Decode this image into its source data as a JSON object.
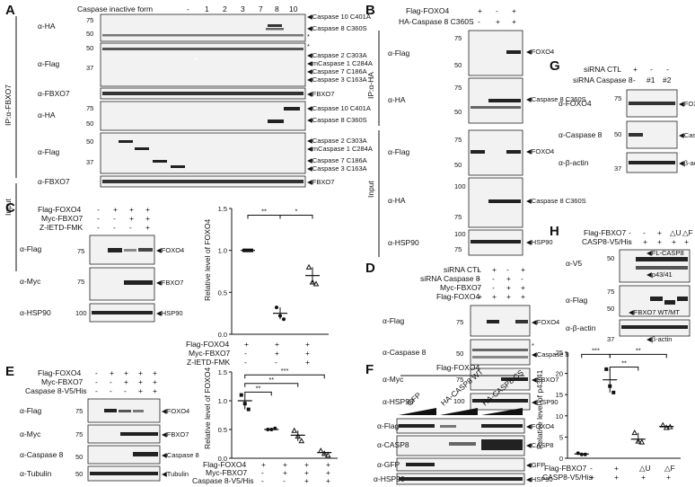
{
  "panels": {
    "A": {
      "letter": "A",
      "header": "Caspase inactive form",
      "lanes": [
        "-",
        "1",
        "2",
        "3",
        "7",
        "8",
        "10"
      ],
      "side_ip": "IP:α-FBXO7",
      "side_input": "Input",
      "rows": [
        "α-HA",
        "α-Flag",
        "α-FBXO7",
        "α-HA",
        "α-Flag",
        "α-FBXO7"
      ],
      "bands": [
        "Caspase 10 C401A",
        "Caspase 8 C360S",
        "Caspase 2 C303A",
        "mCaspase 1 C284A",
        "Caspase 7 C186A",
        "Caspase 3 C163A",
        "FBXO7",
        "Caspase 10 C401A",
        "Caspase 8 C360S",
        "Caspase 2 C303A",
        "mCaspase 1 C284A",
        "Caspase 7 C186A",
        "Caspase 3 C163A",
        "FBXO7"
      ],
      "mw": [
        "75",
        "50",
        "50",
        "37",
        "75",
        "50",
        "50",
        "37"
      ],
      "star": "*"
    },
    "B": {
      "letter": "B",
      "treat": [
        {
          "name": "Flag-FOXO4",
          "v": [
            "+",
            "-",
            "+"
          ]
        },
        {
          "name": "HA-Caspase 8 C360S",
          "v": [
            "-",
            "+",
            "+"
          ]
        }
      ],
      "side_ip": "IP:α-HA",
      "side_input": "Input",
      "rows": [
        "α-Flag",
        "α-HA",
        "α-Flag",
        "α-HA",
        "α-HSP90"
      ],
      "bands": [
        "FOXO4",
        "Caspase 8 C360S",
        "FOXO4",
        "Caspase 8 C360S",
        "HSP90"
      ],
      "mw": [
        "75",
        "50",
        "75",
        "50",
        "75",
        "50",
        "100",
        "75"
      ]
    },
    "C": {
      "letter": "C",
      "treat": [
        {
          "name": "Flag-FOXO4",
          "v": [
            "-",
            "+",
            "+",
            "+"
          ]
        },
        {
          "name": "Myc-FBXO7",
          "v": [
            "-",
            "-",
            "+",
            "+"
          ]
        },
        {
          "name": "Z-IETD-FMK",
          "v": [
            "-",
            "-",
            "-",
            "+"
          ]
        }
      ],
      "rows": [
        "α-Flag",
        "α-Myc",
        "α-HSP90"
      ],
      "bands": [
        "FOXO4",
        "FBXO7",
        "HSP90"
      ],
      "mw": [
        "75",
        "75",
        "100"
      ],
      "ylabel": "Relative level of FOXO4",
      "yticks": [
        "0.0",
        "0.5",
        "1.0",
        "1.5"
      ],
      "xrows": [
        {
          "name": "Flag-FOXO4",
          "v": [
            "+",
            "+",
            "+"
          ]
        },
        {
          "name": "Myc-FBXO7",
          "v": [
            "-",
            "+",
            "+"
          ]
        },
        {
          "name": "Z-IETD-FMK",
          "v": [
            "-",
            "-",
            "+"
          ]
        }
      ],
      "sig": [
        "**",
        "*"
      ]
    },
    "D": {
      "letter": "D",
      "treat": [
        {
          "name": "siRNA CTL",
          "v": [
            "-",
            "+",
            "-",
            "+"
          ]
        },
        {
          "name": "siRNA Caspase 8",
          "v": [
            "-",
            "-",
            "+",
            "-"
          ]
        },
        {
          "name": "Myc-FBXO7",
          "v": [
            "-",
            "-",
            "+",
            "+"
          ]
        },
        {
          "name": "Flag-FOXO4",
          "v": [
            "+",
            "+",
            "+",
            "+"
          ]
        }
      ],
      "rows": [
        "α-Flag",
        "α-Caspase 8",
        "α-Myc",
        "α-HSP90"
      ],
      "bands": [
        "FOXO4",
        "Caspase 8",
        "FBXO7",
        "HSP90"
      ],
      "mw": [
        "75",
        "50",
        "75",
        "100"
      ],
      "star": "*"
    },
    "E": {
      "letter": "E",
      "treat": [
        {
          "name": "Flag-FOXO4",
          "v": [
            "-",
            "+",
            "+",
            "+",
            "+"
          ]
        },
        {
          "name": "Myc-FBXO7",
          "v": [
            "-",
            "-",
            "+",
            "+",
            "+"
          ]
        },
        {
          "name": "Caspase 8-V5/His",
          "v": [
            "-",
            "-",
            "-",
            "+",
            "+"
          ]
        }
      ],
      "rows": [
        "α-Flag",
        "α-Myc",
        "α-Caspase 8",
        "α-Tubulin"
      ],
      "bands": [
        "FOXO4",
        "FBXO7",
        "Caspase 8",
        "Tubulin"
      ],
      "mw": [
        "75",
        "75",
        "50",
        "50"
      ],
      "ylabel": "Relative level of FOXO4",
      "yticks": [
        "0.0",
        "0.5",
        "1.0",
        "1.5"
      ],
      "xrows": [
        {
          "name": "Flag-FOXO4",
          "v": [
            "+",
            "+",
            "+",
            "+"
          ]
        },
        {
          "name": "Myc-FBXO7",
          "v": [
            "-",
            "+",
            "+",
            "+"
          ]
        },
        {
          "name": "Caspase 8-V5/His",
          "v": [
            "-",
            "-",
            "+",
            "+"
          ]
        }
      ],
      "sig": [
        "**",
        "**",
        "***"
      ]
    },
    "F": {
      "letter": "F",
      "header": "Flag-FOXO4",
      "groups": [
        "GFP",
        "HA-CASP8 WT",
        "HA-CASP8 CS"
      ],
      "rows": [
        "α-Flag",
        "α-CASP8",
        "α-GFP",
        "α-HSP90"
      ],
      "bands": [
        "FOXO4",
        "CASP8",
        "GFP",
        "HSP90"
      ],
      "mw": [
        "75",
        "75",
        "50",
        "37",
        "25",
        "100",
        "75"
      ]
    },
    "G": {
      "letter": "G",
      "treat": [
        {
          "name": "siRNA CTL",
          "v": [
            "+",
            "-",
            "-"
          ]
        },
        {
          "name": "siRNA Caspase 8",
          "v": [
            "-",
            "#1",
            "#2"
          ]
        }
      ],
      "rows": [
        "α-FOXO4",
        "α-Caspase 8",
        "α-β-actin"
      ],
      "bands": [
        "FOXO4",
        "Caspase 8",
        "β-actin"
      ],
      "mw": [
        "75",
        "50",
        "37"
      ]
    },
    "H": {
      "letter": "H",
      "treat": [
        {
          "name": "Flag-FBXO7",
          "v": [
            "-",
            "-",
            "+",
            "△U",
            "△F"
          ]
        },
        {
          "name": "CASP8-V5/His",
          "v": [
            "-",
            "+",
            "+",
            "+",
            "+"
          ]
        }
      ],
      "rows": [
        "α-V5",
        "α-Flag",
        "α-β-actin"
      ],
      "bands": [
        "FL-CASP8",
        "p43/41",
        "FBXO7 WT/MT",
        "β-actin"
      ],
      "mw": [
        "50",
        "75",
        "50",
        "37"
      ],
      "ylabel": "Relative level of p43/41",
      "yticks": [
        "0",
        "5",
        "10",
        "15",
        "20",
        "25"
      ],
      "xlabels": [
        "-",
        "+",
        "△U",
        "△F"
      ],
      "xrows": [
        {
          "name": "Flag-FBXO7",
          "v": [
            "-",
            "+",
            "△U",
            "△F"
          ]
        },
        {
          "name": "CASP8-V5/His",
          "v": [
            "+",
            "+",
            "+",
            "+"
          ]
        }
      ],
      "sig": [
        "***",
        "**",
        "**"
      ]
    }
  },
  "chart_data": [
    {
      "type": "scatter",
      "panel": "C",
      "ylabel": "Relative level of FOXO4",
      "ylim": [
        0,
        1.5
      ],
      "categories": [
        "1",
        "2",
        "3"
      ],
      "series": [
        {
          "values": [
            1.0,
            0.25,
            0.7
          ]
        }
      ],
      "points": [
        [
          1.0,
          1.0,
          1.0
        ],
        [
          0.32,
          0.22,
          0.18
        ],
        [
          0.8,
          0.62,
          0.6
        ]
      ]
    },
    {
      "type": "scatter",
      "panel": "E",
      "ylabel": "Relative level of FOXO4",
      "ylim": [
        0,
        1.5
      ],
      "categories": [
        "1",
        "2",
        "3",
        "4"
      ],
      "series": [
        {
          "values": [
            1.0,
            0.5,
            0.4,
            0.1
          ]
        }
      ],
      "points": [
        [
          1.1,
          0.95,
          0.85
        ],
        [
          0.5,
          0.5,
          0.52
        ],
        [
          0.48,
          0.38,
          0.3
        ],
        [
          0.13,
          0.08,
          0.05
        ]
      ]
    },
    {
      "type": "bar",
      "panel": "H",
      "ylabel": "Relative level of p43/41",
      "ylim": [
        0,
        25
      ],
      "categories": [
        "-",
        "+",
        "△U",
        "△F"
      ],
      "series": [
        {
          "values": [
            1.0,
            18.5,
            4.5,
            7.5
          ]
        }
      ],
      "points": [
        [
          1.2,
          0.9,
          0.9
        ],
        [
          21,
          17,
          15.5
        ],
        [
          6,
          4,
          3.8
        ],
        [
          7.8,
          7.2,
          7.4
        ]
      ]
    }
  ]
}
